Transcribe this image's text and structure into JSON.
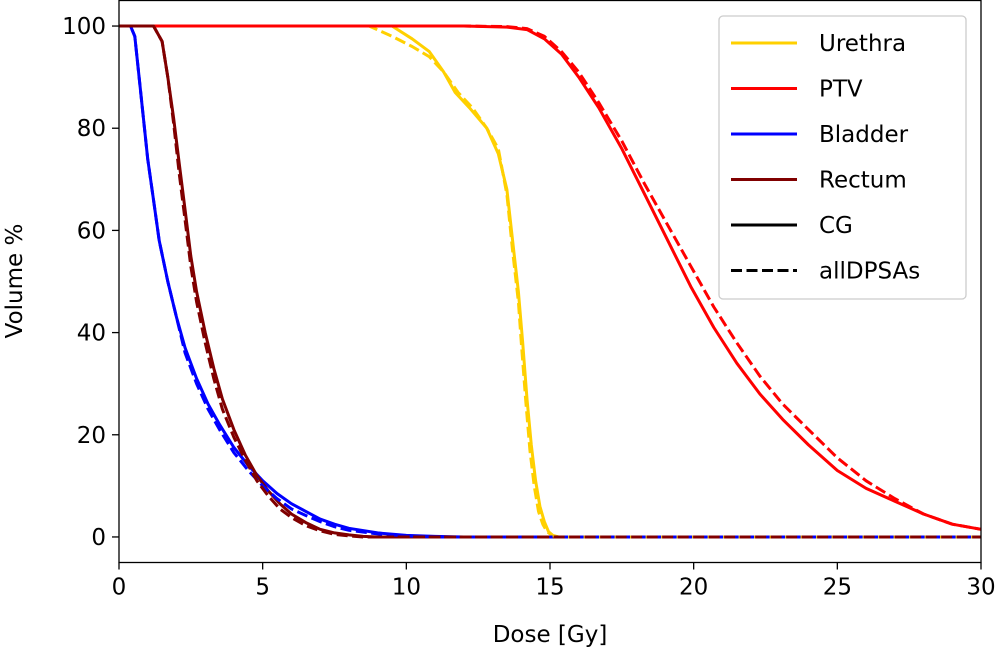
{
  "chart_data": {
    "type": "line",
    "title": "",
    "xlabel": "Dose [Gy]",
    "ylabel": "Volume %",
    "xlim": [
      0,
      30
    ],
    "ylim": [
      -5,
      105
    ],
    "xticks": [
      0,
      5,
      10,
      15,
      20,
      25,
      30
    ],
    "yticks": [
      0,
      20,
      40,
      60,
      80,
      100
    ],
    "grid": false,
    "legend_position": "top-right",
    "legend": [
      {
        "label": "Urethra",
        "color": "#ffd000",
        "style": "solid"
      },
      {
        "label": "PTV",
        "color": "#ff0000",
        "style": "solid"
      },
      {
        "label": "Bladder",
        "color": "#0000ff",
        "style": "solid"
      },
      {
        "label": "Rectum",
        "color": "#800000",
        "style": "solid"
      },
      {
        "label": "CG",
        "color": "#000000",
        "style": "solid"
      },
      {
        "label": "allDPSAs",
        "color": "#000000",
        "style": "dashed"
      }
    ],
    "series": [
      {
        "name": "Urethra (CG)",
        "structure": "Urethra",
        "method": "CG",
        "color": "#ffd000",
        "dash": false,
        "x": [
          0,
          9.5,
          10.2,
          10.8,
          11.3,
          11.7,
          12.2,
          12.8,
          13.2,
          13.5,
          13.7,
          13.9,
          14.05,
          14.2,
          14.35,
          14.5,
          14.65,
          14.8,
          14.95,
          15.1,
          15.3,
          30
        ],
        "y": [
          100,
          100,
          97.5,
          95,
          91,
          87,
          84,
          80,
          75,
          68,
          58,
          48,
          38,
          27,
          18,
          11,
          6,
          3,
          1,
          0.3,
          0,
          0
        ]
      },
      {
        "name": "Urethra (allDPSAs)",
        "structure": "Urethra",
        "method": "allDPSAs",
        "color": "#ffd000",
        "dash": true,
        "x": [
          0,
          8.7,
          9.5,
          10.2,
          10.8,
          11.3,
          11.8,
          12.3,
          12.8,
          13.2,
          13.5,
          13.7,
          13.9,
          14.0,
          14.15,
          14.3,
          14.45,
          14.6,
          14.75,
          14.9,
          15.1,
          15.3,
          30
        ],
        "y": [
          100,
          100,
          98,
          96,
          94,
          91,
          87,
          84,
          80,
          76,
          67,
          56,
          46,
          38,
          27,
          17,
          10,
          5,
          2.5,
          1,
          0.2,
          0,
          0
        ]
      },
      {
        "name": "PTV (CG)",
        "structure": "PTV",
        "method": "CG",
        "color": "#ff0000",
        "dash": false,
        "x": [
          0,
          12,
          13.5,
          14.2,
          14.8,
          15.4,
          16,
          16.7,
          17.5,
          18.3,
          19.1,
          19.9,
          20.7,
          21.5,
          22.3,
          23.1,
          24,
          25,
          26,
          27,
          28,
          29,
          30
        ],
        "y": [
          100,
          100,
          99.8,
          99.3,
          97.5,
          94.5,
          90,
          84,
          76,
          67,
          58,
          49,
          41,
          34,
          28,
          23,
          18,
          13,
          9.5,
          7,
          4.5,
          2.5,
          1.5
        ]
      },
      {
        "name": "PTV (allDPSAs)",
        "structure": "PTV",
        "method": "allDPSAs",
        "color": "#ff0000",
        "dash": true,
        "x": [
          0,
          12,
          13.5,
          14.2,
          14.8,
          15.4,
          16,
          16.7,
          17.5,
          18.3,
          19.1,
          19.9,
          20.7,
          21.5,
          22.3,
          23.1,
          24,
          25,
          26,
          27,
          28,
          29,
          30
        ],
        "y": [
          100,
          100,
          99.9,
          99.5,
          98,
          95,
          91,
          85,
          77.5,
          69,
          61,
          53,
          45,
          38,
          31.5,
          26,
          21,
          15.5,
          11,
          7.5,
          4.5,
          2.5,
          1.5
        ]
      },
      {
        "name": "Bladder (CG)",
        "structure": "Bladder",
        "method": "CG",
        "color": "#0000ff",
        "dash": false,
        "x": [
          0,
          0.4,
          0.55,
          0.7,
          0.85,
          1.0,
          1.2,
          1.4,
          1.7,
          2.0,
          2.3,
          2.7,
          3.1,
          3.5,
          4.0,
          4.5,
          5.0,
          5.5,
          6.0,
          6.5,
          7.0,
          7.5,
          8.0,
          9.0,
          10.0,
          11.0,
          12.0,
          30
        ],
        "y": [
          100,
          100,
          98,
          90,
          82,
          74,
          66,
          58,
          50,
          43,
          37,
          31,
          26,
          22,
          17.5,
          14,
          11,
          8.5,
          6.5,
          5,
          3.5,
          2.5,
          1.7,
          0.8,
          0.3,
          0.1,
          0,
          0
        ]
      },
      {
        "name": "Bladder (allDPSAs)",
        "structure": "Bladder",
        "method": "allDPSAs",
        "color": "#0000ff",
        "dash": true,
        "x": [
          0,
          0.4,
          0.55,
          0.7,
          0.85,
          1.0,
          1.2,
          1.4,
          1.7,
          2.0,
          2.3,
          2.7,
          3.1,
          3.5,
          4.0,
          4.5,
          5.0,
          5.5,
          6.0,
          6.5,
          7.0,
          7.5,
          8.0,
          9.0,
          10.0,
          11.0,
          30
        ],
        "y": [
          100,
          100,
          98,
          90,
          82,
          74,
          66,
          58,
          50,
          43,
          36,
          30,
          25,
          21,
          16.5,
          13,
          10,
          7.5,
          5.5,
          4.2,
          3,
          2,
          1.3,
          0.6,
          0.2,
          0,
          0
        ]
      },
      {
        "name": "Rectum (CG)",
        "structure": "Rectum",
        "method": "CG",
        "color": "#800000",
        "dash": false,
        "x": [
          0,
          1.2,
          1.5,
          1.7,
          1.9,
          2.1,
          2.3,
          2.5,
          2.7,
          3.0,
          3.3,
          3.6,
          4.0,
          4.4,
          4.8,
          5.2,
          5.6,
          6.0,
          6.5,
          7.0,
          7.5,
          8.0,
          8.5,
          9.0,
          30
        ],
        "y": [
          100,
          100,
          97,
          90,
          82,
          73,
          64,
          55,
          48,
          40,
          33,
          27,
          21,
          16,
          12,
          9,
          6.5,
          4.5,
          2.8,
          1.5,
          0.8,
          0.4,
          0.1,
          0,
          0
        ]
      },
      {
        "name": "Rectum (allDPSAs)",
        "structure": "Rectum",
        "method": "allDPSAs",
        "color": "#800000",
        "dash": true,
        "x": [
          0,
          1.2,
          1.5,
          1.7,
          1.9,
          2.1,
          2.3,
          2.5,
          2.7,
          3.0,
          3.3,
          3.6,
          4.0,
          4.4,
          4.8,
          5.2,
          5.6,
          6.0,
          6.5,
          7.0,
          7.5,
          8.0,
          8.5,
          30
        ],
        "y": [
          100,
          100,
          97,
          90,
          81,
          71,
          62,
          53,
          46,
          38,
          31,
          25,
          19.5,
          15,
          11,
          8,
          5.5,
          3.8,
          2.2,
          1.2,
          0.5,
          0.2,
          0,
          0
        ]
      }
    ]
  }
}
